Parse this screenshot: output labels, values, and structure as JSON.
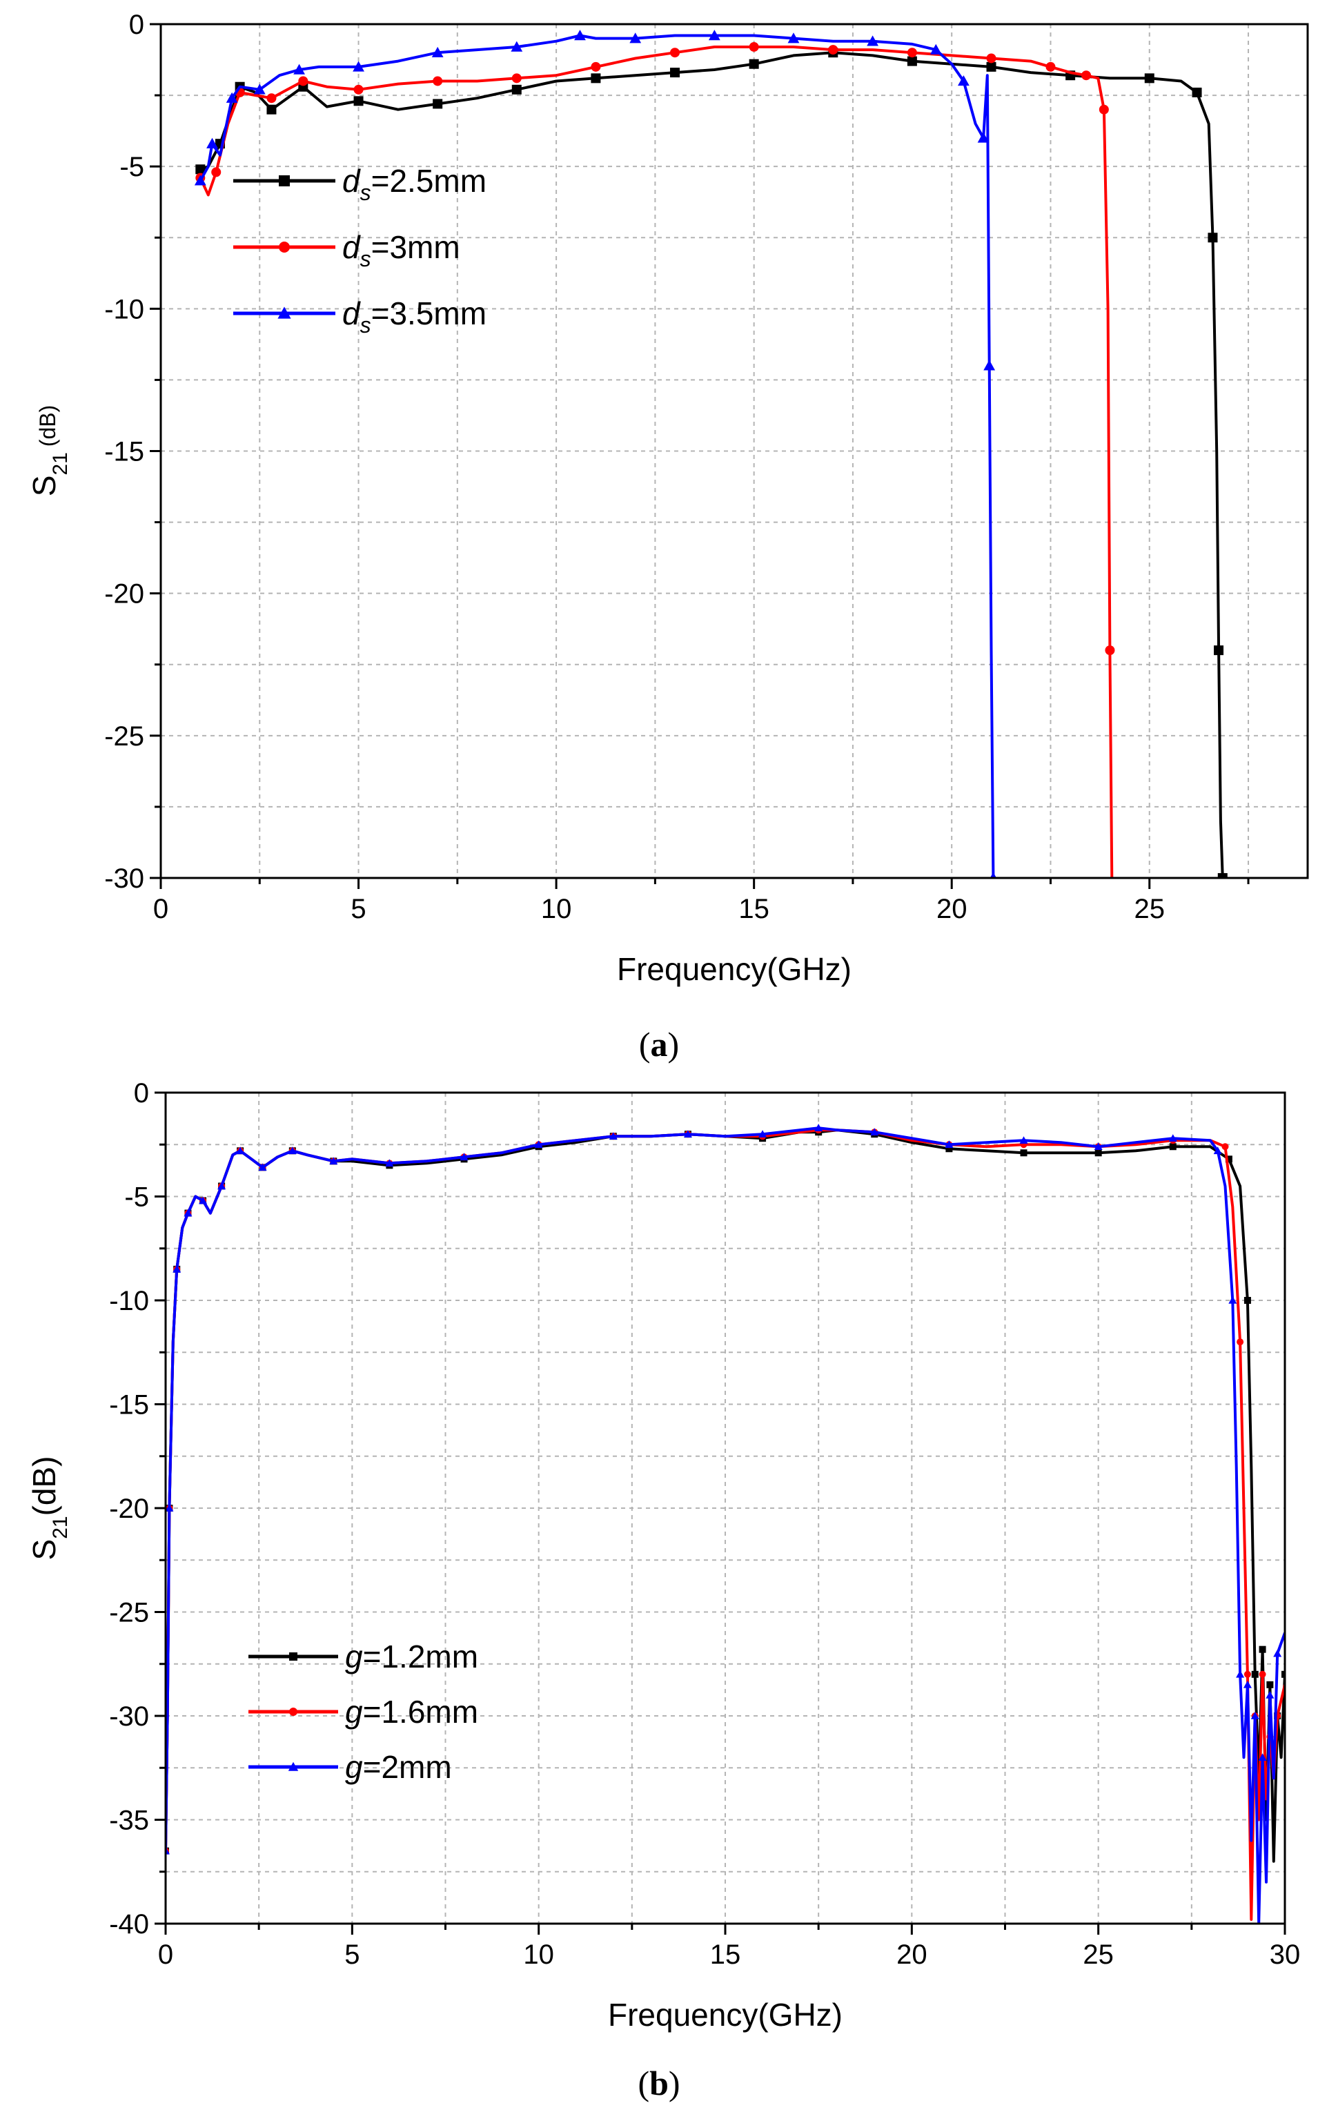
{
  "chart_data": [
    {
      "type": "line",
      "panel_label": "(a)",
      "xlabel": "Frequency(GHz)",
      "ylabel_main": "S",
      "ylabel_sub": "21",
      "ylabel_unit": "(dB)",
      "xlim": [
        0,
        29
      ],
      "ylim": [
        -30,
        0
      ],
      "xticks": [
        0,
        5,
        10,
        15,
        20,
        25
      ],
      "yticks": [
        0,
        -5,
        -10,
        -15,
        -20,
        -25,
        -30
      ],
      "grid": true,
      "legend_position": "upper-left",
      "series": [
        {
          "name_var": "d",
          "name_sub": "s",
          "name_value": "=2.5mm",
          "color": "#000000",
          "marker": "square",
          "x": [
            1.0,
            1.2,
            1.5,
            1.8,
            2.0,
            2.4,
            2.8,
            3.2,
            3.6,
            4.2,
            5.0,
            6.0,
            7.0,
            8.0,
            9.0,
            10.0,
            11.0,
            12.0,
            13.0,
            14.0,
            15.0,
            16.0,
            17.0,
            18.0,
            19.0,
            20.0,
            21.0,
            22.0,
            23.0,
            24.0,
            25.0,
            25.8,
            26.2,
            26.5,
            26.6,
            26.7,
            26.75,
            26.8,
            26.85
          ],
          "y": [
            -5.1,
            -5.0,
            -4.2,
            -3.0,
            -2.2,
            -2.4,
            -3.0,
            -2.6,
            -2.2,
            -2.9,
            -2.7,
            -3.0,
            -2.8,
            -2.6,
            -2.3,
            -2.0,
            -1.9,
            -1.8,
            -1.7,
            -1.6,
            -1.4,
            -1.1,
            -1.0,
            -1.1,
            -1.3,
            -1.4,
            -1.5,
            -1.7,
            -1.8,
            -1.9,
            -1.9,
            -2.0,
            -2.4,
            -3.5,
            -7.5,
            -15.0,
            -22.0,
            -28.0,
            -30.0
          ]
        },
        {
          "name_var": "d",
          "name_sub": "s",
          "name_value": "=3mm",
          "color": "#ff0000",
          "marker": "circle",
          "x": [
            1.0,
            1.2,
            1.4,
            1.7,
            2.0,
            2.4,
            2.8,
            3.2,
            3.6,
            4.2,
            5.0,
            6.0,
            7.0,
            8.0,
            9.0,
            10.0,
            11.0,
            12.0,
            13.0,
            14.0,
            15.0,
            16.0,
            17.0,
            18.0,
            19.0,
            20.0,
            21.0,
            22.0,
            22.5,
            23.0,
            23.4,
            23.7,
            23.85,
            23.95,
            24.0,
            24.05
          ],
          "y": [
            -5.4,
            -6.0,
            -5.2,
            -3.5,
            -2.4,
            -2.5,
            -2.6,
            -2.3,
            -2.0,
            -2.2,
            -2.3,
            -2.1,
            -2.0,
            -2.0,
            -1.9,
            -1.8,
            -1.5,
            -1.2,
            -1.0,
            -0.8,
            -0.8,
            -0.8,
            -0.9,
            -0.9,
            -1.0,
            -1.1,
            -1.2,
            -1.3,
            -1.5,
            -1.7,
            -1.8,
            -1.9,
            -3.0,
            -10.0,
            -22.0,
            -30.0
          ]
        },
        {
          "name_var": "d",
          "name_sub": "s",
          "name_value": "=3.5mm",
          "color": "#0000ff",
          "marker": "triangle",
          "x": [
            1.0,
            1.2,
            1.3,
            1.5,
            1.8,
            2.0,
            2.5,
            3.0,
            3.5,
            4.0,
            5.0,
            6.0,
            7.0,
            8.0,
            9.0,
            10.0,
            10.6,
            11.0,
            12.0,
            13.0,
            14.0,
            15.0,
            16.0,
            17.0,
            18.0,
            19.0,
            19.6,
            20.0,
            20.3,
            20.6,
            20.8,
            20.9,
            20.95,
            21.0,
            21.05
          ],
          "y": [
            -5.5,
            -5.0,
            -4.2,
            -4.6,
            -2.6,
            -2.2,
            -2.3,
            -1.8,
            -1.6,
            -1.5,
            -1.5,
            -1.3,
            -1.0,
            -0.9,
            -0.8,
            -0.6,
            -0.4,
            -0.5,
            -0.5,
            -0.4,
            -0.4,
            -0.4,
            -0.5,
            -0.6,
            -0.6,
            -0.7,
            -0.9,
            -1.4,
            -2.0,
            -3.5,
            -4.0,
            -1.8,
            -12.0,
            -22.0,
            -30.0
          ]
        }
      ]
    },
    {
      "type": "line",
      "panel_label": "(b)",
      "xlabel": "Frequency(GHz)",
      "ylabel_main": "S",
      "ylabel_sub": "21",
      "ylabel_unit": "(dB)",
      "xlim": [
        0,
        30
      ],
      "ylim": [
        -40,
        0
      ],
      "xticks": [
        0,
        5,
        10,
        15,
        20,
        25,
        30
      ],
      "yticks": [
        0,
        -5,
        -10,
        -15,
        -20,
        -25,
        -30,
        -35,
        -40
      ],
      "grid": true,
      "legend_position": "lower-left",
      "series": [
        {
          "name_var": "g",
          "name_sub": "",
          "name_value": "=1.2mm",
          "color": "#000000",
          "marker": "square",
          "x": [
            0.0,
            0.05,
            0.1,
            0.2,
            0.3,
            0.45,
            0.6,
            0.8,
            1.0,
            1.2,
            1.5,
            1.8,
            2.0,
            2.3,
            2.6,
            3.0,
            3.4,
            3.8,
            4.5,
            5.0,
            6.0,
            7.0,
            8.0,
            9.0,
            10.0,
            11.0,
            12.0,
            13.0,
            14.0,
            15.0,
            16.0,
            17.0,
            17.5,
            18.0,
            19.0,
            20.0,
            21.0,
            22.0,
            23.0,
            24.0,
            25.0,
            26.0,
            27.0,
            28.0,
            28.5,
            28.8,
            29.0,
            29.1,
            29.2,
            29.3,
            29.4,
            29.5,
            29.6,
            29.7,
            29.8,
            29.9,
            30.0
          ],
          "y": [
            -36.5,
            -30.0,
            -20.0,
            -12.0,
            -8.5,
            -6.5,
            -5.8,
            -5.0,
            -5.2,
            -5.8,
            -4.5,
            -3.0,
            -2.8,
            -3.2,
            -3.6,
            -3.1,
            -2.8,
            -3.0,
            -3.3,
            -3.3,
            -3.5,
            -3.4,
            -3.2,
            -3.0,
            -2.6,
            -2.4,
            -2.1,
            -2.1,
            -2.0,
            -2.1,
            -2.2,
            -1.9,
            -1.9,
            -1.8,
            -2.0,
            -2.4,
            -2.7,
            -2.8,
            -2.9,
            -2.9,
            -2.9,
            -2.8,
            -2.6,
            -2.6,
            -3.2,
            -4.5,
            -10.0,
            -18.0,
            -28.0,
            -33.0,
            -26.8,
            -35.0,
            -28.5,
            -37.0,
            -30.0,
            -32.0,
            -28.0
          ]
        },
        {
          "name_var": "g",
          "name_sub": "",
          "name_value": "=1.6mm",
          "color": "#ff0000",
          "marker": "circle",
          "x": [
            0.0,
            0.05,
            0.1,
            0.2,
            0.3,
            0.45,
            0.6,
            0.8,
            1.0,
            1.2,
            1.5,
            1.8,
            2.0,
            2.3,
            2.6,
            3.0,
            3.4,
            3.8,
            4.5,
            5.0,
            6.0,
            7.0,
            8.0,
            9.0,
            10.0,
            11.0,
            12.0,
            13.0,
            14.0,
            15.0,
            16.0,
            17.0,
            17.5,
            18.0,
            19.0,
            20.0,
            21.0,
            22.0,
            23.0,
            24.0,
            25.0,
            26.0,
            27.0,
            28.0,
            28.4,
            28.6,
            28.8,
            28.9,
            29.0,
            29.1,
            29.2,
            29.3,
            29.4,
            29.5,
            29.6,
            29.7,
            29.8,
            30.0
          ],
          "y": [
            -36.5,
            -30.0,
            -20.0,
            -12.0,
            -8.5,
            -6.5,
            -5.8,
            -5.0,
            -5.2,
            -5.8,
            -4.5,
            -3.0,
            -2.8,
            -3.2,
            -3.6,
            -3.1,
            -2.8,
            -3.0,
            -3.3,
            -3.2,
            -3.4,
            -3.3,
            -3.1,
            -2.9,
            -2.5,
            -2.3,
            -2.1,
            -2.1,
            -2.0,
            -2.1,
            -2.1,
            -1.9,
            -1.8,
            -1.8,
            -1.9,
            -2.3,
            -2.5,
            -2.6,
            -2.5,
            -2.5,
            -2.6,
            -2.5,
            -2.3,
            -2.3,
            -2.6,
            -5.5,
            -12.0,
            -20.0,
            -28.0,
            -39.8,
            -30.0,
            -35.0,
            -28.0,
            -34.0,
            -31.0,
            -33.0,
            -30.0,
            -28.5
          ]
        },
        {
          "name_var": "g",
          "name_sub": "",
          "name_value": "=2mm",
          "color": "#0000ff",
          "marker": "triangle",
          "x": [
            0.0,
            0.05,
            0.1,
            0.2,
            0.3,
            0.45,
            0.6,
            0.8,
            1.0,
            1.2,
            1.5,
            1.8,
            2.0,
            2.3,
            2.6,
            3.0,
            3.4,
            3.8,
            4.5,
            5.0,
            6.0,
            7.0,
            8.0,
            9.0,
            10.0,
            11.0,
            12.0,
            13.0,
            14.0,
            15.0,
            16.0,
            17.0,
            17.5,
            18.0,
            19.0,
            20.0,
            21.0,
            22.0,
            23.0,
            24.0,
            25.0,
            26.0,
            27.0,
            28.0,
            28.2,
            28.4,
            28.6,
            28.7,
            28.8,
            28.9,
            29.0,
            29.1,
            29.2,
            29.3,
            29.4,
            29.5,
            29.6,
            29.7,
            29.8,
            30.0
          ],
          "y": [
            -36.5,
            -30.0,
            -20.0,
            -12.0,
            -8.5,
            -6.5,
            -5.8,
            -5.0,
            -5.2,
            -5.8,
            -4.5,
            -3.0,
            -2.8,
            -3.2,
            -3.6,
            -3.1,
            -2.8,
            -3.0,
            -3.3,
            -3.2,
            -3.4,
            -3.3,
            -3.1,
            -2.9,
            -2.5,
            -2.3,
            -2.1,
            -2.1,
            -2.0,
            -2.1,
            -2.0,
            -1.8,
            -1.7,
            -1.8,
            -1.9,
            -2.2,
            -2.5,
            -2.4,
            -2.3,
            -2.4,
            -2.6,
            -2.4,
            -2.2,
            -2.3,
            -2.8,
            -4.5,
            -10.0,
            -18.0,
            -28.0,
            -32.0,
            -28.5,
            -36.0,
            -30.0,
            -40.0,
            -32.0,
            -38.0,
            -29.0,
            -33.0,
            -27.0,
            -26.0
          ]
        }
      ]
    }
  ]
}
